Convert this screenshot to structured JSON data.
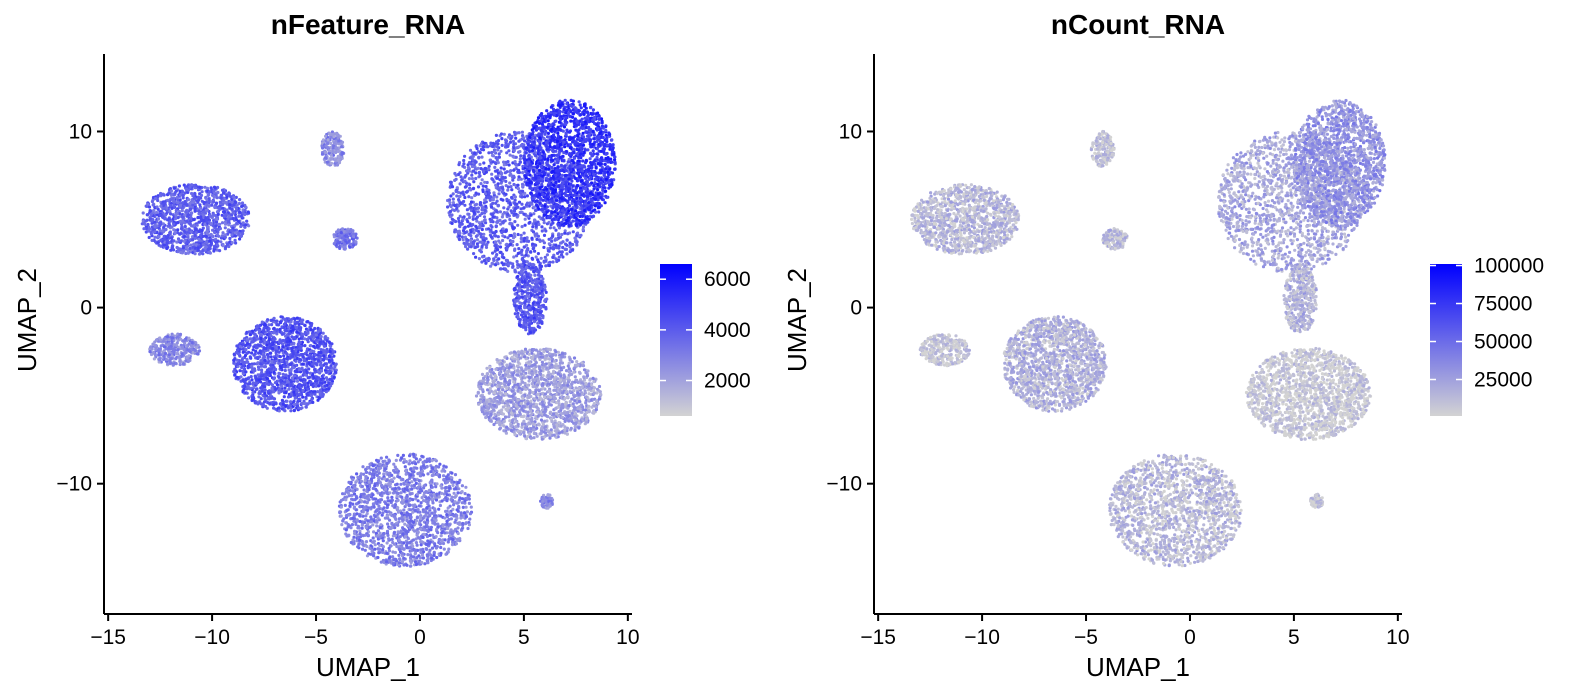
{
  "chart_data": [
    {
      "type": "scatter",
      "title": "nFeature_RNA",
      "xlabel": "UMAP_1",
      "ylabel": "UMAP_2",
      "xlim": [
        -15.2,
        10.2
      ],
      "ylim": [
        -17.4,
        14.4
      ],
      "xticks": [
        -15,
        -10,
        -5,
        0,
        5,
        10
      ],
      "yticks": [
        -10,
        0,
        10
      ],
      "grid": false,
      "legend": {
        "placement": "right",
        "kind": "continuous-colorbar",
        "color_low": "#d3d3d3",
        "color_high": "#0000ff",
        "range": [
          600,
          6600
        ],
        "ticks": [
          2000,
          4000,
          6000
        ]
      },
      "clusters": [
        {
          "id": "A",
          "cx": -10.8,
          "cy": 5.0,
          "rx": 2.6,
          "ry": 2.0,
          "level": 0.55
        },
        {
          "id": "B",
          "cx": -4.2,
          "cy": 9.0,
          "rx": 0.55,
          "ry": 1.0,
          "level": 0.35
        },
        {
          "id": "C",
          "cx": -3.6,
          "cy": 3.9,
          "rx": 0.6,
          "ry": 0.6,
          "level": 0.45
        },
        {
          "id": "D",
          "cx": -11.8,
          "cy": -2.4,
          "rx": 1.2,
          "ry": 0.9,
          "level": 0.35
        },
        {
          "id": "E",
          "cx": -6.5,
          "cy": -3.2,
          "rx": 2.5,
          "ry": 2.7,
          "level": 0.6
        },
        {
          "id": "F",
          "cx": 4.8,
          "cy": 6.0,
          "rx": 3.5,
          "ry": 4.0,
          "level": 0.55
        },
        {
          "id": "G",
          "cx": 7.2,
          "cy": 8.2,
          "rx": 2.2,
          "ry": 3.6,
          "level": 0.75
        },
        {
          "id": "H",
          "cx": 5.3,
          "cy": 0.5,
          "rx": 0.8,
          "ry": 2.0,
          "level": 0.6
        },
        {
          "id": "I",
          "cx": 5.7,
          "cy": -4.9,
          "rx": 3.0,
          "ry": 2.6,
          "level": 0.25
        },
        {
          "id": "J",
          "cx": -0.7,
          "cy": -11.5,
          "rx": 3.2,
          "ry": 3.2,
          "level": 0.4
        },
        {
          "id": "K",
          "cx": 6.1,
          "cy": -11.0,
          "rx": 0.3,
          "ry": 0.4,
          "level": 0.35
        }
      ]
    },
    {
      "type": "scatter",
      "title": "nCount_RNA",
      "xlabel": "UMAP_1",
      "ylabel": "UMAP_2",
      "xlim": [
        -15.2,
        10.2
      ],
      "ylim": [
        -17.4,
        14.4
      ],
      "xticks": [
        -15,
        -10,
        -5,
        0,
        5,
        10
      ],
      "yticks": [
        -10,
        0,
        10
      ],
      "grid": false,
      "legend": {
        "placement": "right",
        "kind": "continuous-colorbar",
        "color_low": "#d3d3d3",
        "color_high": "#0000ff",
        "range": [
          1000,
          101000
        ],
        "ticks": [
          25000,
          50000,
          75000,
          100000
        ]
      },
      "clusters": [
        {
          "id": "A",
          "cx": -10.8,
          "cy": 5.0,
          "rx": 2.6,
          "ry": 2.0,
          "level": 0.12
        },
        {
          "id": "B",
          "cx": -4.2,
          "cy": 9.0,
          "rx": 0.55,
          "ry": 1.0,
          "level": 0.08
        },
        {
          "id": "C",
          "cx": -3.6,
          "cy": 3.9,
          "rx": 0.6,
          "ry": 0.6,
          "level": 0.1
        },
        {
          "id": "D",
          "cx": -11.8,
          "cy": -2.4,
          "rx": 1.2,
          "ry": 0.9,
          "level": 0.05
        },
        {
          "id": "E",
          "cx": -6.5,
          "cy": -3.2,
          "rx": 2.5,
          "ry": 2.7,
          "level": 0.15
        },
        {
          "id": "F",
          "cx": 4.8,
          "cy": 6.0,
          "rx": 3.5,
          "ry": 4.0,
          "level": 0.2
        },
        {
          "id": "G",
          "cx": 7.2,
          "cy": 8.2,
          "rx": 2.2,
          "ry": 3.6,
          "level": 0.3
        },
        {
          "id": "H",
          "cx": 5.3,
          "cy": 0.5,
          "rx": 0.8,
          "ry": 2.0,
          "level": 0.15
        },
        {
          "id": "I",
          "cx": 5.7,
          "cy": -4.9,
          "rx": 3.0,
          "ry": 2.6,
          "level": 0.04
        },
        {
          "id": "J",
          "cx": -0.7,
          "cy": -11.5,
          "rx": 3.2,
          "ry": 3.2,
          "level": 0.12
        },
        {
          "id": "K",
          "cx": 6.1,
          "cy": -11.0,
          "rx": 0.3,
          "ry": 0.4,
          "level": 0.06
        }
      ]
    }
  ]
}
